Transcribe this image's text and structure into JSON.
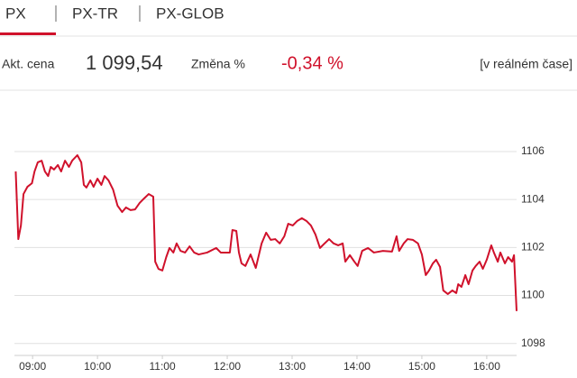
{
  "tabs": [
    "PX",
    "PX-TR",
    "PX-GLOB"
  ],
  "quote": {
    "price_label": "Akt. cena",
    "price": "1 099,54",
    "change_label": "Změna %",
    "change": "-0,34 %",
    "realtime": "[v reálném čase]"
  },
  "chart_data": {
    "type": "line",
    "x": [
      8.74,
      8.78,
      8.82,
      8.86,
      8.92,
      8.99,
      9.03,
      9.08,
      9.14,
      9.19,
      9.24,
      9.28,
      9.33,
      9.39,
      9.44,
      9.5,
      9.56,
      9.61,
      9.69,
      9.75,
      9.79,
      9.83,
      9.89,
      9.94,
      10.0,
      10.06,
      10.11,
      10.17,
      10.24,
      10.31,
      10.38,
      10.44,
      10.51,
      10.58,
      10.65,
      10.72,
      10.79,
      10.86,
      10.89,
      10.94,
      11.0,
      11.06,
      11.11,
      11.17,
      11.22,
      11.28,
      11.35,
      11.42,
      11.49,
      11.56,
      11.69,
      11.83,
      11.9,
      12.04,
      12.08,
      12.14,
      12.18,
      12.22,
      12.28,
      12.36,
      12.44,
      12.53,
      12.6,
      12.67,
      12.74,
      12.81,
      12.88,
      12.94,
      13.01,
      13.08,
      13.15,
      13.22,
      13.29,
      13.36,
      13.43,
      13.5,
      13.57,
      13.64,
      13.71,
      13.78,
      13.82,
      13.89,
      13.96,
      14.01,
      14.08,
      14.17,
      14.26,
      14.4,
      14.54,
      14.61,
      14.65,
      14.72,
      14.78,
      14.86,
      14.94,
      15.0,
      15.06,
      15.11,
      15.17,
      15.22,
      15.28,
      15.33,
      15.4,
      15.47,
      15.53,
      15.56,
      15.61,
      15.67,
      15.72,
      15.78,
      15.83,
      15.89,
      15.94,
      16.0,
      16.07,
      16.11,
      16.17,
      16.21,
      16.28,
      16.33,
      16.39,
      16.42,
      16.46
    ],
    "series": [
      {
        "color": "#d0112b",
        "values": [
          1105.17,
          1102.35,
          1102.92,
          1104.23,
          1104.53,
          1104.68,
          1105.17,
          1105.55,
          1105.62,
          1105.17,
          1104.98,
          1105.36,
          1105.25,
          1105.44,
          1105.17,
          1105.62,
          1105.36,
          1105.62,
          1105.85,
          1105.55,
          1104.61,
          1104.5,
          1104.8,
          1104.53,
          1104.87,
          1104.61,
          1104.98,
          1104.8,
          1104.42,
          1103.74,
          1103.48,
          1103.67,
          1103.56,
          1103.59,
          1103.86,
          1104.05,
          1104.23,
          1104.12,
          1101.41,
          1101.11,
          1101.04,
          1101.6,
          1101.98,
          1101.79,
          1102.17,
          1101.86,
          1101.79,
          1102.05,
          1101.79,
          1101.71,
          1101.79,
          1101.98,
          1101.79,
          1101.79,
          1102.73,
          1102.69,
          1101.79,
          1101.34,
          1101.23,
          1101.71,
          1101.15,
          1102.17,
          1102.62,
          1102.32,
          1102.35,
          1102.17,
          1102.47,
          1102.99,
          1102.92,
          1103.11,
          1103.22,
          1103.11,
          1102.92,
          1102.54,
          1101.98,
          1102.17,
          1102.35,
          1102.17,
          1102.09,
          1102.17,
          1101.41,
          1101.68,
          1101.41,
          1101.23,
          1101.86,
          1101.98,
          1101.79,
          1101.86,
          1101.83,
          1102.47,
          1101.86,
          1102.17,
          1102.35,
          1102.32,
          1102.17,
          1101.71,
          1100.85,
          1101.04,
          1101.34,
          1101.49,
          1101.19,
          1100.21,
          1100.06,
          1100.21,
          1100.1,
          1100.47,
          1100.36,
          1100.85,
          1100.47,
          1101.04,
          1101.23,
          1101.41,
          1101.11,
          1101.49,
          1102.09,
          1101.79,
          1101.41,
          1101.79,
          1101.34,
          1101.6,
          1101.41,
          1101.68,
          1099.35
        ]
      }
    ],
    "xlim": [
      8.72,
      16.46
    ],
    "xticks": [
      {
        "value": 9,
        "label": "09:00"
      },
      {
        "value": 10,
        "label": "10:00"
      },
      {
        "value": 11,
        "label": "11:00"
      },
      {
        "value": 12,
        "label": "12:00"
      },
      {
        "value": 13,
        "label": "13:00"
      },
      {
        "value": 14,
        "label": "14:00"
      },
      {
        "value": 15,
        "label": "15:00"
      },
      {
        "value": 16,
        "label": "16:00"
      }
    ],
    "ylim": [
      1097.5,
      1106.7
    ],
    "yticks": [
      1098,
      1100,
      1102,
      1104,
      1106
    ],
    "grid": true
  }
}
